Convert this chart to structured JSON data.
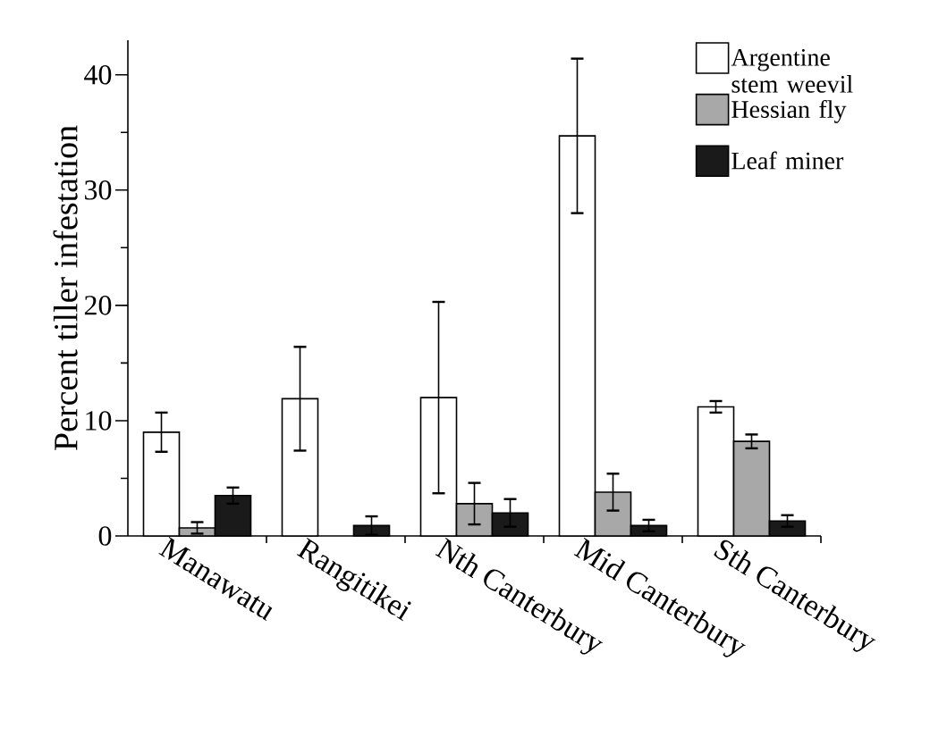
{
  "chart_data": {
    "type": "bar",
    "ylabel": "Percent tiller infestation",
    "categories": [
      "Manawatu",
      "Rangitikei",
      "Nth Canterbury",
      "Mid Canterbury",
      "Sth Canterbury"
    ],
    "series": [
      {
        "name": "Argentine stem weevil",
        "color": "#ffffff",
        "values": [
          9.0,
          11.9,
          12.0,
          34.7,
          11.2
        ],
        "errors": [
          1.7,
          4.5,
          8.3,
          6.7,
          0.5
        ]
      },
      {
        "name": "Hessian fly",
        "color": "#a8a8a8",
        "values": [
          0.7,
          null,
          2.8,
          3.8,
          8.2
        ],
        "errors": [
          0.5,
          null,
          1.8,
          1.6,
          0.6
        ]
      },
      {
        "name": "Leaf miner",
        "color": "#1a1a1a",
        "values": [
          3.5,
          0.9,
          2.0,
          0.9,
          1.3
        ],
        "errors": [
          0.7,
          0.8,
          1.2,
          0.5,
          0.5
        ]
      }
    ],
    "ylim": [
      0,
      43
    ],
    "yticks": [
      0,
      10,
      20,
      30,
      40
    ],
    "legend": "top right"
  }
}
